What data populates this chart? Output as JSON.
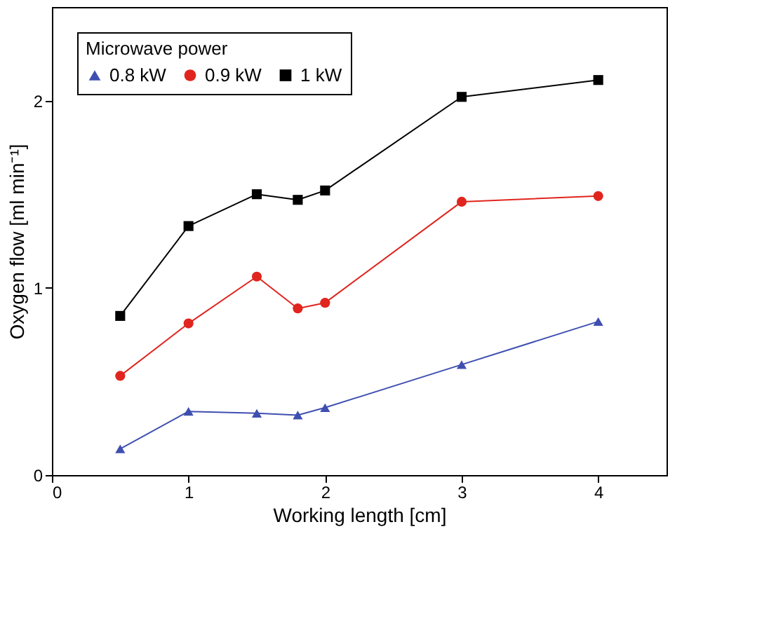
{
  "chart_data": {
    "type": "line",
    "xlabel": "Working length [cm]",
    "ylabel": "Oxygen flow [ml min⁻¹]",
    "legend_title": "Microwave power",
    "legend": "top left",
    "grid": false,
    "x": [
      0.5,
      1,
      1.5,
      1.8,
      2,
      3,
      4
    ],
    "xlim": [
      0,
      4.5
    ],
    "xticks": [
      0,
      1,
      2,
      3,
      4
    ],
    "ylim": [
      0,
      2.5
    ],
    "yticks": [
      0,
      1,
      2
    ],
    "series": [
      {
        "name": "0.8 kW",
        "color": "#3f4fb0",
        "marker": "triangle",
        "values": [
          0.14,
          0.34,
          0.33,
          0.32,
          0.36,
          0.59,
          0.82
        ]
      },
      {
        "name": "0.9 kW",
        "color": "#e0251e",
        "marker": "circle",
        "values": [
          0.53,
          0.81,
          1.06,
          0.89,
          0.92,
          1.46,
          1.49
        ]
      },
      {
        "name": "1 kW",
        "color": "#000000",
        "marker": "square",
        "values": [
          0.85,
          1.33,
          1.5,
          1.47,
          1.52,
          2.02,
          2.11
        ]
      }
    ]
  }
}
